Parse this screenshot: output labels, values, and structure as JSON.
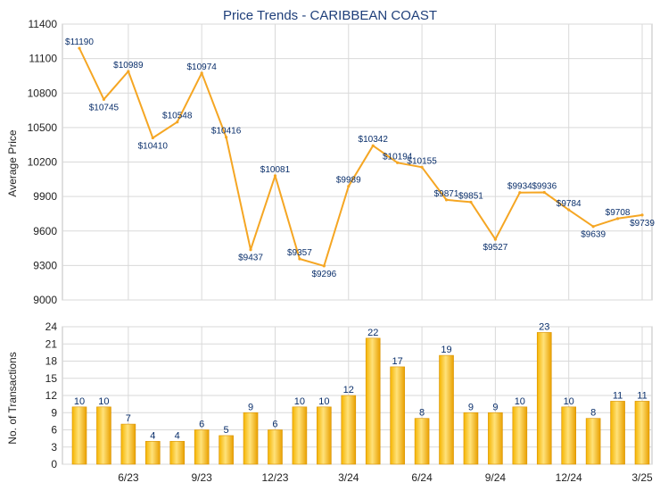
{
  "chart_data": [
    {
      "type": "line",
      "title": "Price Trends - CARIBBEAN COAST",
      "ylabel": "Average Price",
      "ylim": [
        9000,
        11400
      ],
      "yticks": [
        9000,
        9300,
        9600,
        9900,
        10200,
        10500,
        10800,
        11100,
        11400
      ],
      "x": [
        "4/23",
        "5/23",
        "6/23",
        "7/23",
        "8/23",
        "9/23",
        "10/23",
        "11/23",
        "12/23",
        "1/24",
        "2/24",
        "3/24",
        "4/24",
        "5/24",
        "6/24",
        "7/24",
        "8/24",
        "9/24",
        "10/24",
        "11/24",
        "12/24",
        "1/25",
        "2/25",
        "3/25"
      ],
      "xtick_labels": [
        "6/23",
        "9/23",
        "12/23",
        "3/24",
        "6/24",
        "9/24",
        "12/24",
        "3/25"
      ],
      "series": [
        {
          "values": [
            11190,
            10745,
            10989,
            10410,
            10548,
            10974,
            10416,
            9437,
            10081,
            9357,
            9296,
            9989,
            10342,
            10194,
            10155,
            9871,
            9851,
            9527,
            9934,
            9936,
            9784,
            9639,
            9708,
            9739
          ],
          "labels": [
            "$11190",
            "$10745",
            "$10989",
            "$10410",
            "$10548",
            "$10974",
            "$10416",
            "$9437",
            "$10081",
            "$9357",
            "$9296",
            "$9989",
            "$10342",
            "$10194",
            "$10155",
            "$9871",
            "$9851",
            "$9527",
            "$9934",
            "$9936",
            "$9784",
            "$9639",
            "$9708",
            "$9739"
          ]
        }
      ],
      "grid": true,
      "colors": {
        "line": "#f5a623"
      }
    },
    {
      "type": "bar",
      "ylabel": "No. of Transactions",
      "ylim": [
        0,
        24
      ],
      "yticks": [
        0,
        3,
        6,
        9,
        12,
        15,
        18,
        21,
        24
      ],
      "categories": [
        "4/23",
        "5/23",
        "6/23",
        "7/23",
        "8/23",
        "9/23",
        "10/23",
        "11/23",
        "12/23",
        "1/24",
        "2/24",
        "3/24",
        "4/24",
        "5/24",
        "6/24",
        "7/24",
        "8/24",
        "9/24",
        "10/24",
        "11/24",
        "12/24",
        "1/25",
        "2/25",
        "3/25"
      ],
      "xtick_labels": [
        "6/23",
        "9/23",
        "12/23",
        "3/24",
        "6/24",
        "9/24",
        "12/24",
        "3/25"
      ],
      "values": [
        10,
        10,
        7,
        4,
        4,
        6,
        5,
        9,
        6,
        10,
        10,
        12,
        22,
        17,
        8,
        19,
        9,
        9,
        10,
        23,
        10,
        8,
        11,
        11
      ],
      "grid": true,
      "colors": {
        "bar_light": "#ffe08a",
        "bar_dark": "#f0a800",
        "bar_edge": "#d99200"
      }
    }
  ]
}
